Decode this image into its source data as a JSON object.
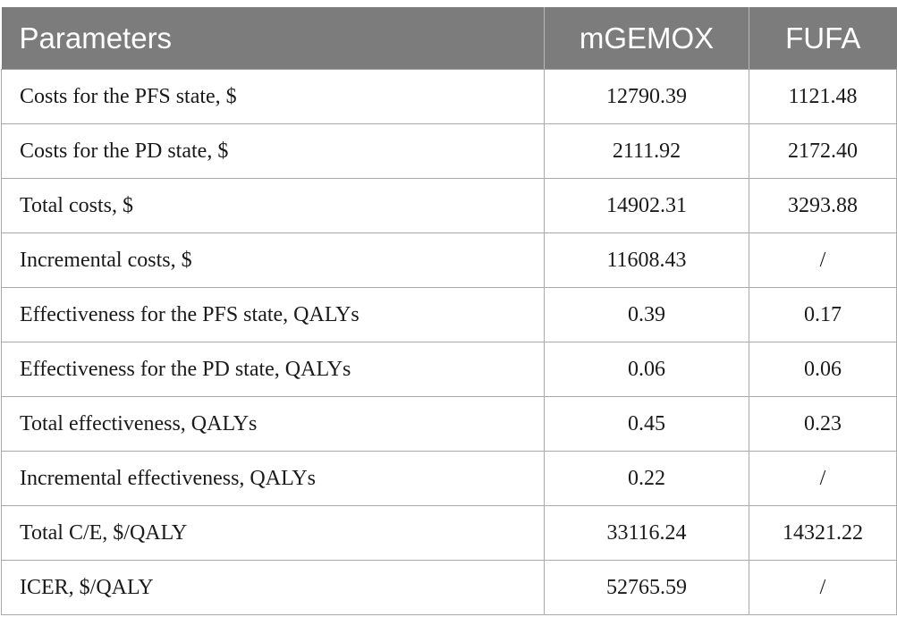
{
  "table": {
    "headers": {
      "parameters": "Parameters",
      "mgemox": "mGEMOX",
      "fufa": "FUFA"
    },
    "rows": [
      {
        "label": "Costs for the PFS state, $",
        "mgemox": "12790.39",
        "fufa": "1121.48"
      },
      {
        "label": "Costs for the PD state, $",
        "mgemox": "2111.92",
        "fufa": "2172.40"
      },
      {
        "label": "Total costs, $",
        "mgemox": "14902.31",
        "fufa": "3293.88"
      },
      {
        "label": "Incremental costs, $",
        "mgemox": "11608.43",
        "fufa": "/"
      },
      {
        "label": "Effectiveness for the PFS state, QALYs",
        "mgemox": "0.39",
        "fufa": "0.17"
      },
      {
        "label": "Effectiveness for the PD state, QALYs",
        "mgemox": "0.06",
        "fufa": "0.06"
      },
      {
        "label": "Total effectiveness, QALYs",
        "mgemox": "0.45",
        "fufa": "0.23"
      },
      {
        "label": "Incremental effectiveness, QALYs",
        "mgemox": "0.22",
        "fufa": "/"
      },
      {
        "label": "Total C/E, $/QALY",
        "mgemox": "33116.24",
        "fufa": "14321.22"
      },
      {
        "label": "ICER, $/QALY",
        "mgemox": "52765.59",
        "fufa": "/"
      }
    ]
  },
  "colors": {
    "header_background": "#7c7c7c",
    "header_text": "#ffffff",
    "grid_line": "#a9a9a9",
    "body_text": "#1a1a1a"
  }
}
